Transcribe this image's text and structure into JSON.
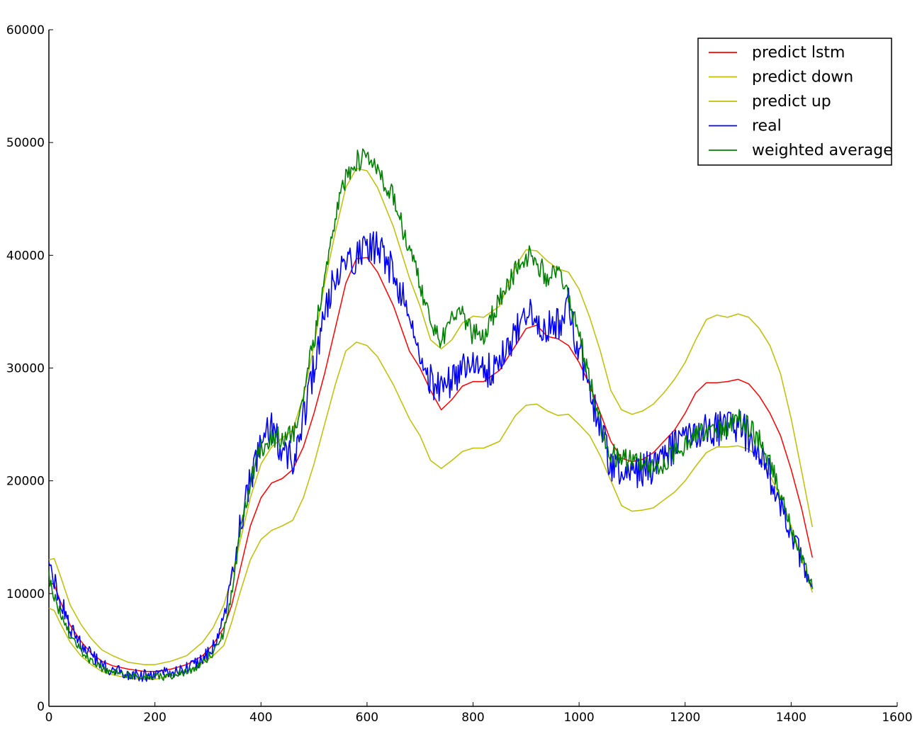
{
  "chart_data": {
    "type": "line",
    "title": "",
    "xlabel": "",
    "ylabel": "",
    "xlim": [
      0,
      1600
    ],
    "ylim": [
      0,
      60000
    ],
    "x_ticks": [
      "0",
      "200",
      "400",
      "600",
      "800",
      "1000",
      "1200",
      "1400",
      "1600"
    ],
    "y_ticks": [
      "0",
      "10000",
      "20000",
      "30000",
      "40000",
      "50000",
      "60000"
    ],
    "grid": false,
    "legend_position": "top-right",
    "legend": [
      "predict lstm",
      "predict down",
      "predict up",
      "real",
      "weighted average"
    ],
    "series": [
      {
        "name": "predict lstm",
        "color": "#ff0000",
        "noise": 0,
        "x": [
          0,
          10,
          20,
          40,
          60,
          80,
          100,
          120,
          150,
          180,
          200,
          230,
          260,
          290,
          310,
          330,
          345,
          360,
          380,
          400,
          420,
          440,
          460,
          480,
          500,
          520,
          540,
          560,
          580,
          600,
          620,
          650,
          680,
          700,
          720,
          740,
          760,
          780,
          800,
          820,
          850,
          880,
          900,
          920,
          940,
          960,
          980,
          1000,
          1020,
          1040,
          1060,
          1080,
          1100,
          1120,
          1140,
          1160,
          1180,
          1200,
          1220,
          1240,
          1260,
          1280,
          1300,
          1320,
          1340,
          1360,
          1380,
          1400,
          1420,
          1440
        ],
        "y": [
          11000,
          10800,
          9500,
          7200,
          5800,
          4700,
          4000,
          3600,
          3300,
          3100,
          3100,
          3300,
          3700,
          4500,
          5500,
          7000,
          9000,
          12000,
          16000,
          18500,
          19800,
          20200,
          21000,
          23000,
          26000,
          29500,
          33500,
          37500,
          39700,
          39800,
          38500,
          35500,
          31500,
          30000,
          28000,
          26300,
          27200,
          28400,
          28800,
          28800,
          29800,
          32000,
          33500,
          33800,
          32800,
          32600,
          32000,
          30500,
          28500,
          26000,
          23500,
          22000,
          21700,
          21900,
          22500,
          23500,
          24500,
          26000,
          27800,
          28700,
          28700,
          28800,
          29000,
          28600,
          27500,
          26000,
          24000,
          21000,
          17500,
          13200
        ]
      },
      {
        "name": "predict down",
        "color": "#bfbf00",
        "noise": 0,
        "x": [
          0,
          10,
          20,
          40,
          60,
          80,
          100,
          120,
          150,
          180,
          200,
          230,
          260,
          290,
          310,
          330,
          345,
          360,
          380,
          400,
          420,
          440,
          460,
          480,
          500,
          520,
          540,
          560,
          580,
          600,
          620,
          650,
          680,
          700,
          720,
          740,
          760,
          780,
          800,
          820,
          850,
          880,
          900,
          920,
          940,
          960,
          980,
          1000,
          1020,
          1040,
          1060,
          1080,
          1100,
          1120,
          1140,
          1160,
          1180,
          1200,
          1220,
          1240,
          1260,
          1280,
          1300,
          1320,
          1340,
          1360,
          1380,
          1400,
          1420,
          1440
        ],
        "y": [
          8700,
          8500,
          7500,
          5700,
          4500,
          3700,
          3100,
          2800,
          2500,
          2400,
          2400,
          2700,
          3100,
          3800,
          4500,
          5400,
          7500,
          10000,
          13000,
          14800,
          15600,
          16000,
          16500,
          18500,
          21500,
          25000,
          28500,
          31500,
          32300,
          32000,
          31000,
          28500,
          25500,
          24000,
          21800,
          21100,
          21800,
          22600,
          22900,
          22900,
          23500,
          25800,
          26700,
          26800,
          26200,
          25800,
          25900,
          25000,
          24000,
          22200,
          20000,
          17800,
          17300,
          17400,
          17600,
          18300,
          19000,
          20000,
          21300,
          22500,
          23000,
          23000,
          23100,
          22800,
          22000,
          20500,
          18500,
          16000,
          13000,
          10100
        ]
      },
      {
        "name": "predict up",
        "color": "#bfbf00",
        "noise": 0,
        "x": [
          0,
          10,
          20,
          40,
          60,
          80,
          100,
          120,
          150,
          180,
          200,
          230,
          260,
          290,
          310,
          330,
          345,
          360,
          380,
          400,
          420,
          440,
          460,
          480,
          500,
          520,
          540,
          560,
          580,
          600,
          620,
          650,
          680,
          700,
          720,
          740,
          760,
          780,
          800,
          820,
          850,
          880,
          900,
          920,
          940,
          960,
          980,
          1000,
          1020,
          1040,
          1060,
          1080,
          1100,
          1120,
          1140,
          1160,
          1180,
          1200,
          1220,
          1240,
          1260,
          1280,
          1300,
          1320,
          1340,
          1360,
          1380,
          1400,
          1420,
          1440
        ],
        "y": [
          13000,
          13100,
          11800,
          9000,
          7300,
          6000,
          5000,
          4500,
          3900,
          3700,
          3700,
          4000,
          4500,
          5700,
          7000,
          9000,
          11500,
          14500,
          18500,
          21500,
          23000,
          23800,
          24500,
          27500,
          32000,
          37500,
          42000,
          46000,
          47700,
          47500,
          46000,
          42500,
          38000,
          35500,
          32500,
          31700,
          32500,
          34000,
          34600,
          34500,
          35500,
          39000,
          40500,
          40400,
          39500,
          38800,
          38500,
          37000,
          34500,
          31500,
          28000,
          26300,
          25900,
          26200,
          26800,
          27800,
          29000,
          30500,
          32500,
          34300,
          34700,
          34500,
          34800,
          34500,
          33500,
          32000,
          29500,
          25500,
          20800,
          15900
        ]
      },
      {
        "name": "real",
        "color": "#0000ff",
        "noise": 1600,
        "x": [
          0,
          10,
          20,
          40,
          60,
          80,
          100,
          120,
          150,
          180,
          200,
          230,
          260,
          290,
          310,
          330,
          345,
          360,
          380,
          400,
          420,
          440,
          460,
          480,
          500,
          520,
          540,
          560,
          580,
          600,
          620,
          650,
          680,
          700,
          720,
          740,
          760,
          780,
          800,
          820,
          850,
          880,
          900,
          920,
          940,
          960,
          980,
          1000,
          1020,
          1040,
          1060,
          1080,
          1100,
          1120,
          1140,
          1160,
          1180,
          1200,
          1220,
          1240,
          1260,
          1280,
          1300,
          1320,
          1340,
          1360,
          1380,
          1400,
          1420,
          1440
        ],
        "y": [
          12500,
          11000,
          9700,
          7000,
          5600,
          4500,
          3600,
          3200,
          2900,
          2700,
          2800,
          3000,
          3400,
          4200,
          5200,
          7500,
          11500,
          16000,
          20000,
          23500,
          24500,
          22500,
          22000,
          25500,
          30000,
          34500,
          38500,
          40000,
          39800,
          41000,
          40500,
          38500,
          35000,
          32000,
          29000,
          28000,
          29000,
          30000,
          30500,
          29500,
          30500,
          33000,
          34500,
          34500,
          33500,
          34000,
          35500,
          31500,
          28000,
          24500,
          21500,
          20500,
          20800,
          21000,
          21200,
          22000,
          23000,
          24000,
          24500,
          24500,
          24500,
          24700,
          24800,
          24000,
          22500,
          20500,
          18000,
          15500,
          13000,
          10500
        ]
      },
      {
        "name": "weighted average",
        "color": "#008000",
        "noise": 1000,
        "x": [
          0,
          10,
          20,
          40,
          60,
          80,
          100,
          120,
          150,
          180,
          200,
          230,
          260,
          290,
          310,
          330,
          345,
          360,
          380,
          400,
          420,
          440,
          460,
          480,
          500,
          520,
          540,
          560,
          580,
          600,
          620,
          650,
          680,
          700,
          720,
          740,
          760,
          780,
          800,
          820,
          850,
          880,
          900,
          920,
          940,
          960,
          980,
          1000,
          1020,
          1040,
          1060,
          1080,
          1100,
          1120,
          1140,
          1160,
          1180,
          1200,
          1220,
          1240,
          1260,
          1280,
          1300,
          1320,
          1340,
          1360,
          1380,
          1400,
          1420,
          1440
        ],
        "y": [
          11500,
          9700,
          8500,
          6300,
          5000,
          4000,
          3300,
          3000,
          2800,
          2600,
          2600,
          2700,
          3000,
          3800,
          4800,
          6600,
          10000,
          15000,
          20000,
          23000,
          24000,
          23800,
          24000,
          27500,
          32500,
          38000,
          43500,
          47000,
          48500,
          48500,
          47500,
          45000,
          40500,
          37500,
          33500,
          32500,
          34500,
          34500,
          33000,
          33000,
          36000,
          38500,
          40000,
          39500,
          38000,
          39000,
          36000,
          33000,
          29000,
          25000,
          22500,
          21800,
          22000,
          21500,
          21000,
          21500,
          22500,
          23300,
          24000,
          24300,
          24300,
          24700,
          25500,
          24800,
          23500,
          21500,
          19000,
          16000,
          13200,
          10800
        ]
      }
    ]
  }
}
